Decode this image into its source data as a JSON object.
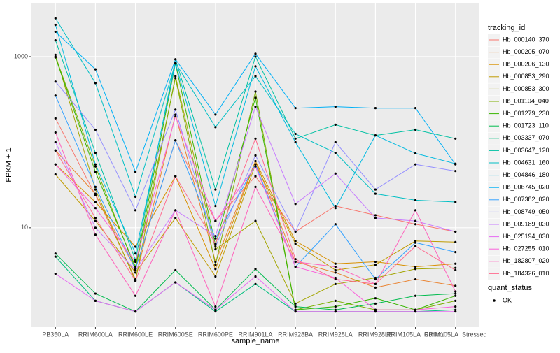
{
  "chart_data": {
    "type": "line",
    "x_label": "sample_name",
    "y_label": "FPKM + 1",
    "log_y": true,
    "grid": true,
    "legend_title": "tracking_id",
    "legend2_title": "quant_status",
    "legend2_entries": [
      "OK"
    ],
    "categories": [
      "PB350LA",
      "RRIM600LA",
      "RRIM600LE",
      "RRIM600SE",
      "RRIM600PE",
      "RRIM901LA",
      "RRIM928BA",
      "RRIM928LA",
      "RRIM928LE",
      "RRIM105LA_Control",
      "RRIM105LA_Stressed"
    ],
    "ylim": [
      0.69,
      4170
    ],
    "yticks": [
      10,
      1000
    ],
    "series": [
      {
        "name": "Hb_000140_370",
        "color": "#F8766D",
        "values": [
          190,
          24,
          3.3,
          105,
          12,
          40,
          9,
          18,
          14,
          11,
          9
        ]
      },
      {
        "name": "Hb_000205_070",
        "color": "#EA8331",
        "values": [
          80,
          25,
          2.5,
          210,
          4,
          60,
          4,
          3,
          2,
          2.5,
          2.1
        ]
      },
      {
        "name": "Hb_000206_130",
        "color": "#D89000",
        "values": [
          55,
          20,
          6,
          40,
          3.3,
          60,
          7,
          3.8,
          4,
          3.5,
          3.8
        ]
      },
      {
        "name": "Hb_000853_290",
        "color": "#C09B00",
        "values": [
          42,
          12,
          3,
          13,
          2.7,
          55,
          6.5,
          3.2,
          3.7,
          7,
          6.8
        ]
      },
      {
        "name": "Hb_000853_300",
        "color": "#A3A500",
        "values": [
          1050,
          28,
          2.4,
          590,
          5.6,
          12,
          1.3,
          2.2,
          2.6,
          3.3,
          3.4
        ]
      },
      {
        "name": "Hb_001104_040",
        "color": "#7CAE00",
        "values": [
          1000,
          52,
          3.3,
          560,
          3.7,
          390,
          1.1,
          1.4,
          1.1,
          1.1,
          1.4
        ]
      },
      {
        "name": "Hb_001279_230",
        "color": "#39B600",
        "values": [
          980,
          45,
          3.5,
          830,
          6.3,
          330,
          1.1,
          1.2,
          1.5,
          1.1,
          1.6
        ]
      },
      {
        "name": "Hb_001723_110",
        "color": "#00BB4E",
        "values": [
          5,
          1.7,
          1.05,
          3.2,
          1.1,
          3.3,
          1.2,
          1.1,
          1.3,
          1.6,
          1.7
        ]
      },
      {
        "name": "Hb_003337_070",
        "color": "#00BF7D",
        "values": [
          4.6,
          1.4,
          1.05,
          2.3,
          1.05,
          2.2,
          1.05,
          1.05,
          1.05,
          1.05,
          1.1
        ]
      },
      {
        "name": "Hb_003647_120",
        "color": "#00C1A3",
        "values": [
          1550,
          75,
          4.2,
          930,
          28,
          1000,
          110,
          160,
          120,
          140,
          110
        ]
      },
      {
        "name": "Hb_004631_160",
        "color": "#00BFC4",
        "values": [
          2800,
          490,
          23,
          840,
          150,
          590,
          125,
          75,
          25,
          21,
          20
        ]
      },
      {
        "name": "Hb_004846_180",
        "color": "#00BAE0",
        "values": [
          2350,
          55,
          5,
          840,
          18,
          770,
          100,
          17,
          120,
          74,
          56
        ]
      },
      {
        "name": "Hb_006745_020",
        "color": "#00B0F6",
        "values": [
          1950,
          710,
          45,
          930,
          210,
          1080,
          250,
          260,
          250,
          250,
          55
        ]
      },
      {
        "name": "Hb_007382_020",
        "color": "#35A2FF",
        "values": [
          350,
          30,
          3.3,
          105,
          7.5,
          55,
          3.5,
          11,
          2.5,
          6.7,
          5.2
        ]
      },
      {
        "name": "Hb_008749_050",
        "color": "#9590FF",
        "values": [
          510,
          140,
          16,
          240,
          6,
          70,
          9,
          100,
          28,
          55,
          46
        ]
      },
      {
        "name": "Hb_009189_030",
        "color": "#C77CFF",
        "values": [
          100,
          10,
          3.2,
          16,
          8,
          260,
          19,
          43,
          13,
          12,
          9
        ]
      },
      {
        "name": "Hb_025194_030",
        "color": "#E76BF3",
        "values": [
          2.9,
          1.4,
          1.05,
          2.3,
          1.1,
          2.7,
          1.05,
          1.05,
          1.05,
          1.05,
          1.05
        ]
      },
      {
        "name": "Hb_027255_010",
        "color": "#FA62DB",
        "values": [
          55,
          17,
          4,
          200,
          12,
          52,
          3.5,
          2.6,
          1.1,
          1.1,
          1.2
        ]
      },
      {
        "name": "Hb_182807_020",
        "color": "#FF62BC",
        "values": [
          130,
          8.3,
          1.6,
          16,
          1.2,
          30,
          4,
          3.5,
          2.2,
          16,
          1.8
        ]
      },
      {
        "name": "Hb_184326_010",
        "color": "#FF6C90",
        "values": [
          80,
          13,
          2.4,
          40,
          6.5,
          110,
          4.3,
          2.5,
          2.2,
          6.1,
          3.2
        ]
      }
    ]
  }
}
